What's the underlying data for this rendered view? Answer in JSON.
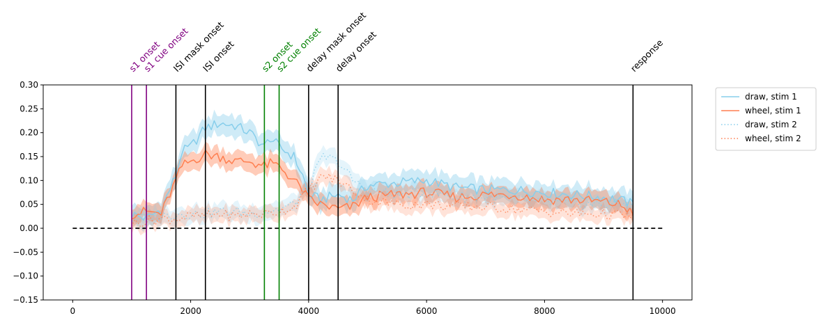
{
  "chart_data": {
    "type": "line",
    "xlim": [
      -500,
      10500
    ],
    "ylim": [
      -0.15,
      0.3
    ],
    "x_ticks": [
      0,
      2000,
      4000,
      6000,
      8000,
      10000
    ],
    "y_ticks": [
      -0.15,
      -0.1,
      -0.05,
      0.0,
      0.05,
      0.1,
      0.15,
      0.2,
      0.25,
      0.3
    ],
    "y_tick_labels": [
      "−0.15",
      "−0.10",
      "−0.05",
      "0.00",
      "0.05",
      "0.10",
      "0.15",
      "0.20",
      "0.25",
      "0.30"
    ],
    "grid": false,
    "legend_position": "outside-right-top",
    "baseline": {
      "y": 0,
      "x_range": [
        0,
        10000
      ],
      "style": "dashed",
      "color": "#000000"
    },
    "events": [
      {
        "label": "s1 onset",
        "x": 1000,
        "color": "#800080"
      },
      {
        "label": "s1 cue onset",
        "x": 1250,
        "color": "#800080"
      },
      {
        "label": "ISI mask onset",
        "x": 1750,
        "color": "#000000"
      },
      {
        "label": "ISI onset",
        "x": 2250,
        "color": "#000000"
      },
      {
        "label": "s2 onset",
        "x": 3250,
        "color": "#008000"
      },
      {
        "label": "s2 cue onset",
        "x": 3500,
        "color": "#008000"
      },
      {
        "label": "delay mask onset",
        "x": 4000,
        "color": "#000000"
      },
      {
        "label": "delay onset",
        "x": 4500,
        "color": "#000000"
      },
      {
        "label": "response",
        "x": 9500,
        "color": "#000000"
      }
    ],
    "series": [
      {
        "name": "draw, stim 1",
        "color": "#87ceeb",
        "style": "solid",
        "band": 0.025,
        "x": [
          1000,
          1250,
          1500,
          1750,
          1850,
          2000,
          2250,
          2500,
          2750,
          3000,
          3250,
          3350,
          3500,
          3750,
          3900,
          4000,
          4200,
          4500,
          4750,
          5000,
          5500,
          6000,
          6500,
          7000,
          7500,
          8000,
          8500,
          9000,
          9250,
          9500
        ],
        "y": [
          0.03,
          0.02,
          0.04,
          0.11,
          0.16,
          0.17,
          0.21,
          0.22,
          0.215,
          0.2,
          0.17,
          0.19,
          0.17,
          0.15,
          0.11,
          0.07,
          0.06,
          0.07,
          0.06,
          0.09,
          0.095,
          0.1,
          0.085,
          0.08,
          0.08,
          0.075,
          0.07,
          0.065,
          0.06,
          0.05
        ]
      },
      {
        "name": "wheel, stim 1",
        "color": "#ff7f50",
        "style": "solid",
        "band": 0.022,
        "x": [
          1000,
          1250,
          1500,
          1750,
          1850,
          2000,
          2250,
          2500,
          2750,
          3000,
          3250,
          3350,
          3500,
          3750,
          3900,
          4000,
          4200,
          4500,
          4750,
          5000,
          5500,
          6000,
          6500,
          7000,
          7500,
          8000,
          8500,
          9000,
          9250,
          9500
        ],
        "y": [
          0.03,
          0.035,
          0.03,
          0.1,
          0.13,
          0.14,
          0.155,
          0.15,
          0.14,
          0.14,
          0.13,
          0.135,
          0.13,
          0.1,
          0.08,
          0.06,
          0.05,
          0.04,
          0.045,
          0.065,
          0.07,
          0.075,
          0.065,
          0.07,
          0.07,
          0.06,
          0.06,
          0.055,
          0.05,
          0.035
        ]
      },
      {
        "name": "draw, stim 2",
        "color": "#87ceeb",
        "style": "dotted",
        "band": 0.02,
        "x": [
          1000,
          1250,
          1500,
          1750,
          2000,
          2250,
          2500,
          2750,
          3000,
          3250,
          3500,
          3750,
          4000,
          4250,
          4500,
          4750,
          5000,
          5500,
          6000,
          6500,
          7000,
          7500,
          8000,
          8500,
          9000,
          9500
        ],
        "y": [
          0.02,
          0.025,
          0.025,
          0.03,
          0.03,
          0.03,
          0.035,
          0.035,
          0.03,
          0.035,
          0.04,
          0.05,
          0.09,
          0.15,
          0.14,
          0.1,
          0.08,
          0.07,
          0.075,
          0.065,
          0.065,
          0.06,
          0.055,
          0.05,
          0.05,
          0.05
        ]
      },
      {
        "name": "wheel, stim 2",
        "color": "#ff7f50",
        "style": "dotted",
        "band": 0.018,
        "x": [
          1000,
          1250,
          1500,
          1750,
          2000,
          2250,
          2500,
          2750,
          3000,
          3250,
          3500,
          3750,
          4000,
          4250,
          4500,
          4750,
          5000,
          5500,
          6000,
          6500,
          7000,
          7500,
          8000,
          8500,
          9000,
          9500
        ],
        "y": [
          0.01,
          0.015,
          0.02,
          0.02,
          0.025,
          0.025,
          0.03,
          0.025,
          0.03,
          0.03,
          0.035,
          0.045,
          0.08,
          0.11,
          0.1,
          0.08,
          0.06,
          0.05,
          0.05,
          0.045,
          0.045,
          0.04,
          0.035,
          0.03,
          0.03,
          0.025
        ]
      }
    ]
  }
}
